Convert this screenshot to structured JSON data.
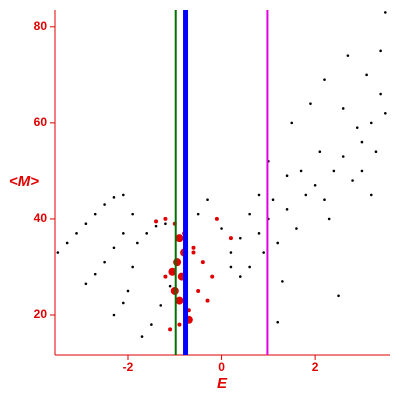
{
  "chart_data": {
    "type": "scatter",
    "x_label": "E",
    "y_label": "<M>",
    "xlim": [
      -3.56,
      3.6
    ],
    "ylim": [
      11.67,
      83.5
    ],
    "xticks": [
      -2,
      0,
      2
    ],
    "yticks": [
      20,
      40,
      60,
      80
    ],
    "axis_color": "#e00000",
    "vlines": [
      {
        "x": -0.98,
        "color": "#007000",
        "width": 2
      },
      {
        "x": -0.77,
        "color": "#0000ff",
        "width": 5
      },
      {
        "x": 0.98,
        "color": "#e000e0",
        "width": 2
      }
    ],
    "series": [
      {
        "color": "#000000",
        "marker_size": 1.3,
        "x": [
          -3.5,
          -3.3,
          -3.1,
          -2.9,
          -2.7,
          -2.5,
          -2.3,
          -2.1,
          -2.9,
          -2.7,
          -2.5,
          -2.3,
          -2.1,
          -1.9,
          -2.3,
          -2.1,
          -2,
          -1.9,
          -1.8,
          -1.6,
          -1.4,
          -1.2,
          -1.7,
          -1.5,
          -1.3,
          -1.1,
          -0.5,
          -0.3,
          0,
          0.2,
          0.4,
          0.6,
          0.8,
          1,
          1.2,
          1.4,
          1.6,
          1.8,
          2,
          2.2,
          2.4,
          2.6,
          2.8,
          3,
          3.2,
          3.4,
          3.5,
          3.3,
          2.9,
          2.7,
          3.1,
          3.4,
          3.5,
          1.5,
          1.9,
          2.2,
          0.8,
          1,
          0.4,
          0.2,
          1.3,
          2.5,
          1.2,
          2.1,
          1.7,
          3.2,
          0.6,
          0.9,
          1.1,
          2.3,
          2.6,
          3,
          1.4
        ],
        "values": [
          33,
          35,
          37,
          39,
          41,
          43,
          44.5,
          45,
          26.5,
          28.5,
          31,
          34,
          37,
          41,
          20,
          22.5,
          25,
          30,
          35,
          37,
          38.5,
          39,
          15.5,
          18,
          22,
          26,
          41,
          44,
          38,
          33,
          36,
          30,
          37,
          40,
          35,
          42,
          38,
          45,
          47,
          44,
          50,
          53,
          48,
          56,
          60,
          66,
          62,
          54,
          59,
          74,
          70,
          75,
          83,
          60,
          64,
          69,
          45,
          52,
          28,
          30,
          27,
          24,
          18.5,
          54,
          50,
          45,
          41,
          33,
          44,
          40,
          63,
          50,
          49
        ]
      },
      {
        "color": "#e00000",
        "marker_size": 2,
        "x": [
          -1.4,
          -1.2,
          -1,
          -0.8,
          -0.6,
          -0.4,
          -0.2,
          -0.5,
          -0.7,
          -0.9,
          -1.1,
          -0.3,
          -0.1,
          0.2,
          -1.2,
          -0.6
        ],
        "values": [
          39.5,
          40,
          39,
          37,
          34,
          31,
          28,
          25,
          21,
          18,
          17,
          23,
          40,
          36,
          28,
          33
        ]
      },
      {
        "color": "#e00000",
        "marker_size": 4,
        "x": [
          -0.9,
          -0.95,
          -1,
          -0.9,
          -0.8,
          -0.7,
          -0.85,
          -1.05
        ],
        "values": [
          36,
          31,
          25,
          23,
          33,
          19,
          28,
          29
        ]
      }
    ]
  }
}
